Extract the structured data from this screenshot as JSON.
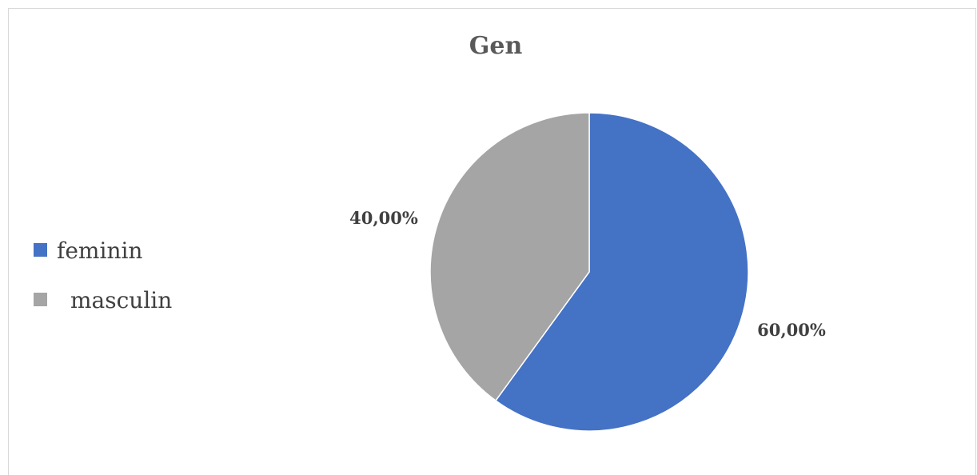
{
  "chart_data": {
    "type": "pie",
    "title": "Gen",
    "categories": [
      "feminin",
      "masculin"
    ],
    "values": [
      60.0,
      40.0
    ],
    "labels": [
      "60,00%",
      "40,00%"
    ],
    "colors": [
      "#4472c4",
      "#a5a5a5"
    ],
    "legend_position": "left",
    "start_angle": "12 o'clock",
    "direction": "clockwise"
  }
}
